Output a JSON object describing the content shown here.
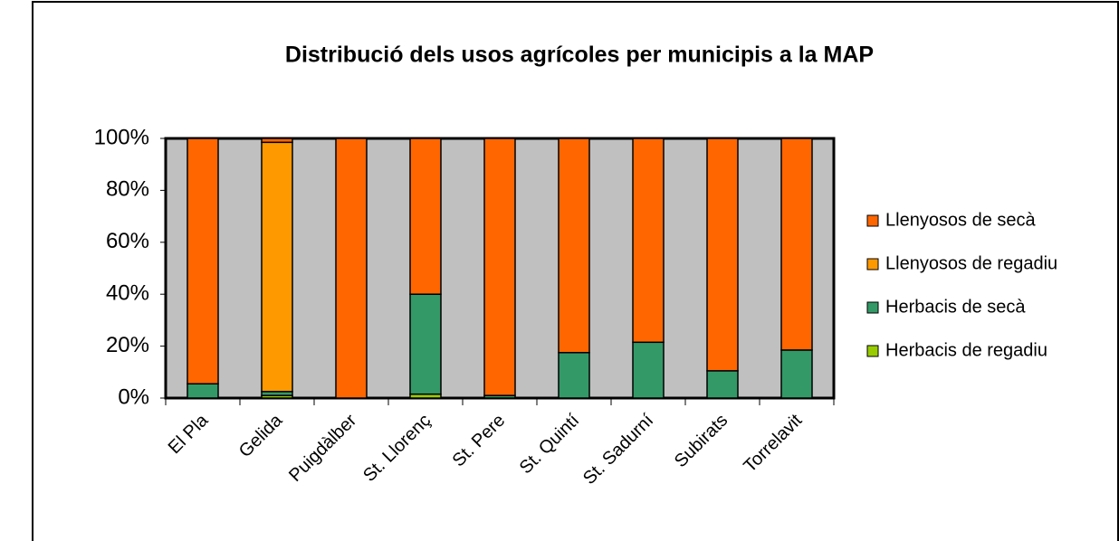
{
  "chart_data": {
    "type": "stacked_bar",
    "title": "Distribució dels usos agrícoles per municipis a la MAP",
    "categories": [
      "El Pla",
      "Gelida",
      "Puigdàlber",
      "St. Llorenç",
      "St. Pere",
      "St. Quintí",
      "St. Sadurní",
      "Subirats",
      "Torrelavit"
    ],
    "series": [
      {
        "name": "Herbacis de regadiu",
        "color": "#99cc00",
        "values": [
          0,
          1,
          0,
          1.5,
          0,
          0,
          0,
          0,
          0
        ]
      },
      {
        "name": "Herbacis de secà",
        "color": "#339966",
        "values": [
          5.5,
          1.5,
          0,
          38.5,
          1,
          17.5,
          21.5,
          10.5,
          18.5
        ]
      },
      {
        "name": "Llenyosos de regadiu",
        "color": "#ff9900",
        "values": [
          0,
          96,
          0,
          0,
          0,
          0,
          0,
          0,
          0
        ]
      },
      {
        "name": "Llenyosos de secà",
        "color": "#ff6600",
        "values": [
          94.5,
          1.5,
          100,
          60,
          99,
          82.5,
          78.5,
          89.5,
          81.5
        ]
      }
    ],
    "ylim": [
      0,
      100
    ],
    "yticks": [
      {
        "value": 0,
        "label": "0%"
      },
      {
        "value": 20,
        "label": "20%"
      },
      {
        "value": 40,
        "label": "40%"
      },
      {
        "value": 60,
        "label": "60%"
      },
      {
        "value": 80,
        "label": "80%"
      },
      {
        "value": 100,
        "label": "100%"
      }
    ],
    "legend": "right"
  }
}
